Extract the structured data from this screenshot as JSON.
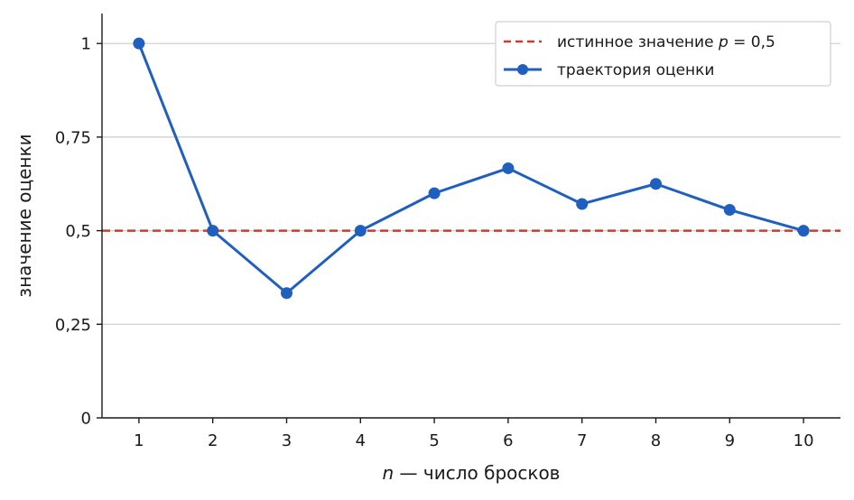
{
  "chart_data": {
    "type": "line",
    "x": [
      1,
      2,
      3,
      4,
      5,
      6,
      7,
      8,
      9,
      10
    ],
    "xlim": [
      0.5,
      10.5
    ],
    "ylim": [
      0,
      1.08
    ],
    "x_ticks": [
      1,
      2,
      3,
      4,
      5,
      6,
      7,
      8,
      9,
      10
    ],
    "x_tick_labels": [
      "1",
      "2",
      "3",
      "4",
      "5",
      "6",
      "7",
      "8",
      "9",
      "10"
    ],
    "y_ticks": [
      0,
      0.25,
      0.5,
      0.75,
      1
    ],
    "y_tick_labels": [
      "0",
      "0,25",
      "0,5",
      "0,75",
      "1"
    ],
    "xlabel_italic": "n",
    "xlabel_rest": " — число бросков",
    "ylabel": "значение оценки",
    "grid": "horizontal",
    "legend_position": "top-right",
    "series": [
      {
        "name": "траектория оценки",
        "values": [
          1.0,
          0.5,
          0.3333,
          0.5,
          0.6,
          0.6667,
          0.5714,
          0.625,
          0.5556,
          0.5
        ],
        "color": "#1f5fbf",
        "marker": "circle"
      }
    ],
    "reference_line": {
      "y": 0.5,
      "label_prefix": "истинное значение ",
      "label_var": "p",
      "label_suffix": " = 0,5",
      "color": "#d23a2a",
      "style": "dashed"
    }
  }
}
